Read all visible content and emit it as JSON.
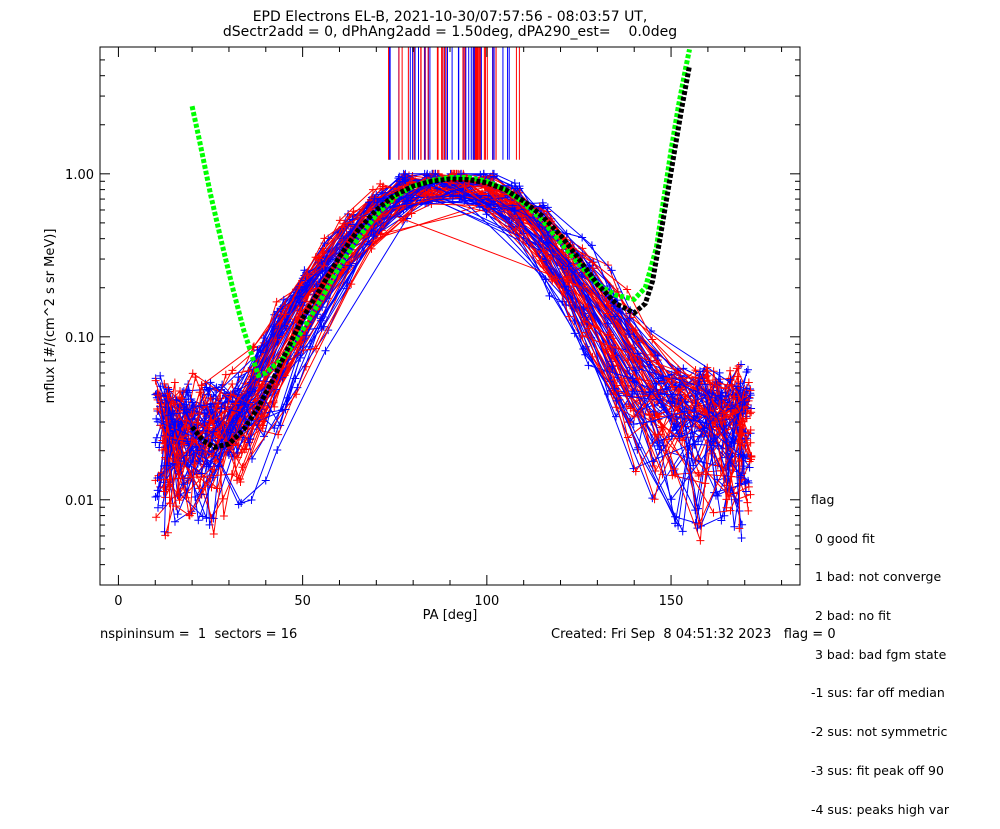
{
  "header": {
    "title_line1": "EPD Electrons EL-B, 2021-10-30/07:57:56 - 08:03:57 UT,",
    "title_line2": "dSectr2add = 0, dPhAng2add = 1.50deg, dPA290_est=    0.0deg"
  },
  "chart_data": {
    "type": "line",
    "title": "EPD Electrons EL-B, 2021-10-30/07:57:56 - 08:03:57 UT, dSectr2add = 0, dPhAng2add = 1.50deg, dPA290_est=    0.0deg",
    "xlabel": "PA [deg]",
    "ylabel": "mflux [#/(cm^2 s sr MeV)]",
    "xlim": [
      -5,
      185
    ],
    "ylim": [
      0.003,
      6.0
    ],
    "yscale": "log",
    "x_ticks": [
      0,
      50,
      100,
      150
    ],
    "x_tick_labels": [
      "0",
      "50",
      "100",
      "150"
    ],
    "y_ticks": [
      0.01,
      0.1,
      1.0
    ],
    "y_tick_labels": [
      "0.01",
      "0.10",
      "1.00"
    ],
    "colors": {
      "series_red": "#ff0000",
      "series_blue": "#0000ff",
      "fit_green": "#00ff00",
      "fit_black": "#000000"
    },
    "fit_curves": [
      {
        "color": "green",
        "x": [
          20,
          22,
          25,
          28,
          31,
          34,
          37,
          38,
          40,
          45,
          50,
          55,
          60,
          65,
          70,
          75,
          80,
          85,
          90,
          95,
          100,
          105,
          110,
          115,
          120,
          125,
          130,
          135,
          140,
          143,
          146,
          148,
          150,
          152,
          154,
          155
        ],
        "y": [
          2.6,
          1.6,
          0.75,
          0.38,
          0.2,
          0.11,
          0.068,
          0.058,
          0.06,
          0.075,
          0.11,
          0.17,
          0.27,
          0.4,
          0.56,
          0.72,
          0.84,
          0.91,
          0.95,
          0.95,
          0.9,
          0.8,
          0.66,
          0.52,
          0.38,
          0.28,
          0.21,
          0.18,
          0.17,
          0.2,
          0.35,
          0.7,
          1.4,
          2.6,
          4.5,
          5.8
        ]
      },
      {
        "color": "black",
        "x": [
          20,
          23,
          26,
          30,
          34,
          38,
          42,
          46,
          50,
          55,
          60,
          65,
          70,
          75,
          80,
          85,
          90,
          95,
          100,
          105,
          110,
          115,
          120,
          125,
          130,
          135,
          140,
          143,
          145,
          147,
          149,
          151,
          153,
          155
        ],
        "y": [
          0.028,
          0.023,
          0.021,
          0.022,
          0.027,
          0.037,
          0.055,
          0.085,
          0.13,
          0.2,
          0.31,
          0.45,
          0.6,
          0.74,
          0.84,
          0.9,
          0.93,
          0.92,
          0.88,
          0.8,
          0.68,
          0.55,
          0.42,
          0.3,
          0.21,
          0.16,
          0.14,
          0.16,
          0.22,
          0.4,
          0.75,
          1.4,
          2.6,
          4.6
        ]
      }
    ],
    "series_description": "many spectra of red and blue PA profiles with + markers"
  },
  "flag_legend": {
    "title": "flag",
    "items": [
      " 0 good fit",
      " 1 bad: not converge",
      " 2 bad: no fit",
      " 3 bad: bad fgm state",
      "-1 sus: far off median",
      "-2 sus: not symmetric",
      "-3 sus: fit peak off 90",
      "-4 sus: peaks high var"
    ]
  },
  "footer": {
    "left": "nspininsum =  1  sectors = 16",
    "right": "Created: Fri Sep  8 04:51:32 2023   flag = 0"
  }
}
